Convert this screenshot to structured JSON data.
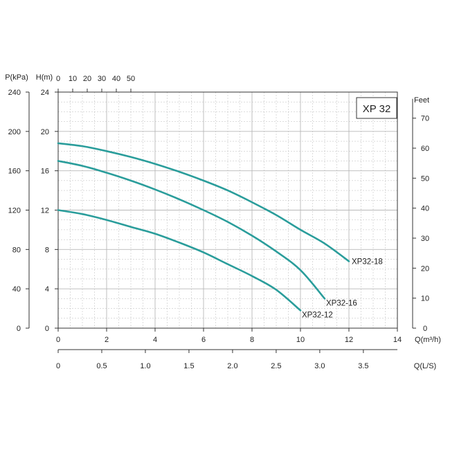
{
  "chart_data": {
    "type": "line",
    "title": "",
    "legend_box": "XP 32",
    "grid": true,
    "colors": {
      "curve": "#2a9d9b",
      "grid": "#b8b8b8",
      "axis": "#333333"
    },
    "axes": {
      "q_m3h": {
        "label": "Q(m³/h)",
        "range": [
          0,
          14
        ],
        "ticks": [
          0,
          2,
          4,
          6,
          8,
          10,
          12,
          14
        ],
        "tick_labels": [
          "0",
          "2",
          "4",
          "6",
          "8",
          "10",
          "12",
          "14"
        ]
      },
      "q_ls": {
        "label": "Q(L/S)",
        "range": [
          0,
          3.89
        ],
        "ticks": [
          0,
          0.5,
          1.0,
          1.5,
          2.0,
          2.5,
          3.0,
          3.5
        ],
        "tick_labels": [
          "0",
          "0.5",
          "1.0",
          "1.5",
          "2.0",
          "2.5",
          "3.0",
          "3.5"
        ]
      },
      "q_lmin": {
        "label": "",
        "range": [
          0,
          233.3
        ],
        "ticks": [
          0,
          10,
          20,
          30,
          40,
          50
        ],
        "tick_labels": [
          "0",
          "10",
          "20",
          "30",
          "40",
          "50"
        ]
      },
      "h_m": {
        "label": "H(m)",
        "range": [
          0,
          24
        ],
        "ticks": [
          0,
          4,
          8,
          12,
          16,
          20,
          24
        ],
        "tick_labels": [
          "0",
          "4",
          "8",
          "12",
          "16",
          "20",
          "24"
        ]
      },
      "p_kpa": {
        "label": "P(kPa)",
        "range": [
          0,
          240
        ],
        "ticks": [
          0,
          40,
          80,
          120,
          160,
          200,
          240
        ],
        "tick_labels": [
          "0",
          "40",
          "80",
          "120",
          "160",
          "200",
          "240"
        ]
      },
      "h_feet": {
        "label": "Feet",
        "range": [
          0,
          78.7
        ],
        "ticks": [
          0,
          10,
          20,
          30,
          40,
          50,
          60,
          70
        ],
        "tick_labels": [
          "0",
          "10",
          "20",
          "30",
          "40",
          "50",
          "60",
          "70"
        ]
      }
    },
    "series": [
      {
        "name": "XP32-18",
        "x": [
          0,
          1,
          2,
          3,
          4,
          5,
          6,
          7,
          8,
          9,
          10,
          11,
          12
        ],
        "y": [
          18.8,
          18.5,
          18.0,
          17.4,
          16.7,
          15.9,
          15.0,
          14.0,
          12.8,
          11.5,
          10.0,
          8.6,
          6.8
        ]
      },
      {
        "name": "XP32-16",
        "x": [
          0,
          1,
          2,
          3,
          4,
          5,
          6,
          7,
          8,
          9,
          10,
          11
        ],
        "y": [
          17.0,
          16.5,
          15.8,
          15.0,
          14.1,
          13.1,
          12.0,
          10.8,
          9.4,
          7.8,
          5.9,
          3.0
        ]
      },
      {
        "name": "XP32-12",
        "x": [
          0,
          1,
          2,
          3,
          4,
          5,
          6,
          7,
          8,
          9,
          10
        ],
        "y": [
          12.0,
          11.6,
          11.0,
          10.3,
          9.6,
          8.7,
          7.7,
          6.5,
          5.3,
          3.9,
          1.8
        ]
      }
    ]
  }
}
